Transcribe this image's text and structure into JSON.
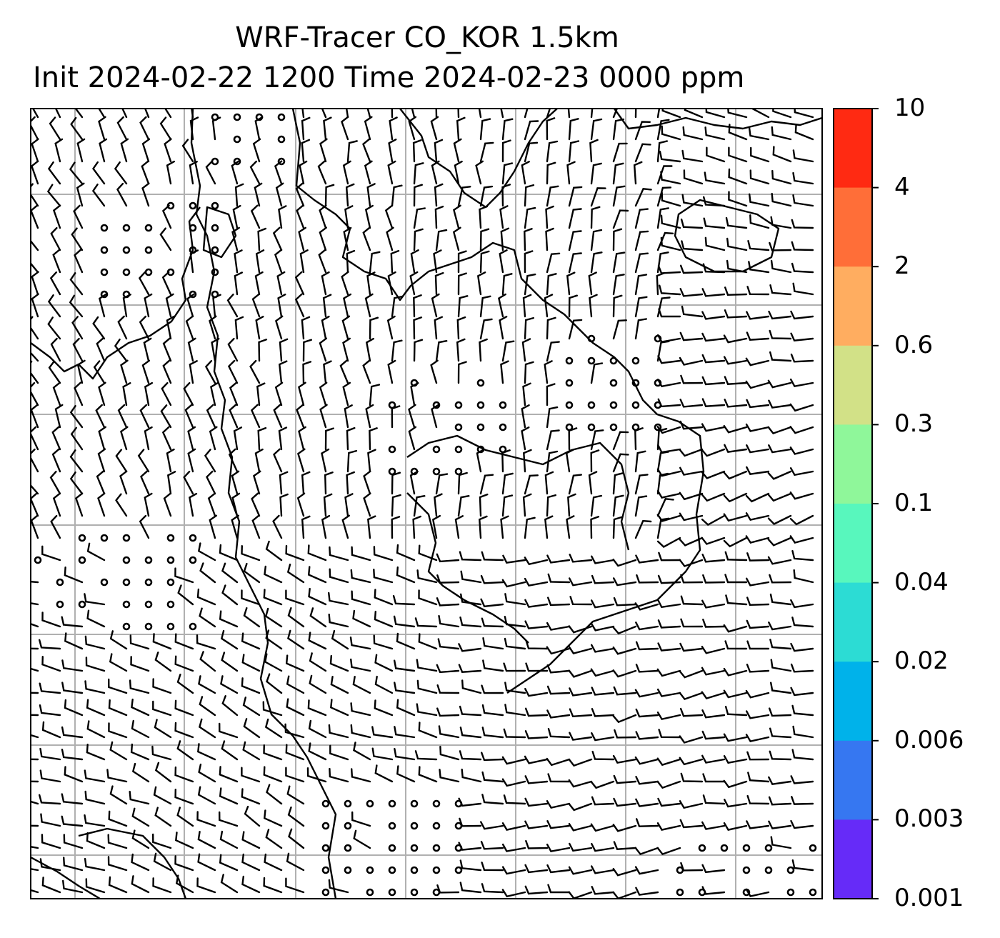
{
  "title": {
    "line1": "WRF-Tracer CO_KOR 1.5km",
    "line2": "Init 2024-02-22 1200 Time 2024-02-23 0000 ppm"
  },
  "colorbar": {
    "levels": [
      "10",
      "4",
      "2",
      "0.6",
      "0.3",
      "0.1",
      "0.04",
      "0.02",
      "0.006",
      "0.003",
      "0.001"
    ],
    "colors": [
      "#ff2a12",
      "#ff6e38",
      "#ffad60",
      "#d2e187",
      "#8ff79a",
      "#58f7bd",
      "#2cdcd4",
      "#00b2ea",
      "#3677f1",
      "#662bf8"
    ]
  },
  "map": {
    "grid_on": true,
    "barb_color": "#000000",
    "coast_color": "#000000",
    "grid_color": "#b0b0b0"
  }
}
